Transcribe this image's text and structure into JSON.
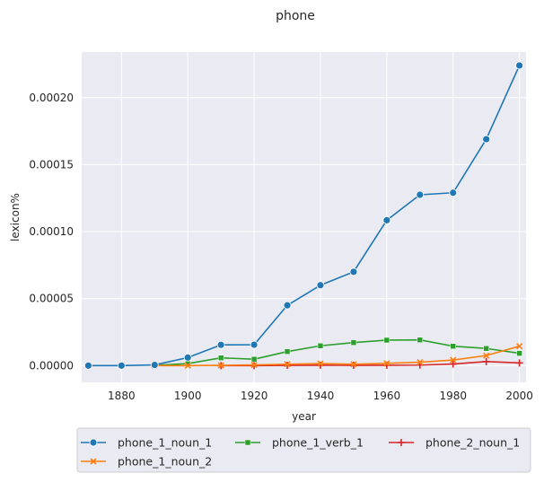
{
  "chart_data": {
    "type": "line",
    "title": "phone",
    "xlabel": "year",
    "ylabel": "lexicon%",
    "xlim": [
      1868,
      2002
    ],
    "ylim": [
      -1.25e-05,
      0.000234
    ],
    "x_ticks": [
      1880,
      1900,
      1920,
      1940,
      1960,
      1980,
      2000
    ],
    "y_ticks": [
      0.0,
      5e-05,
      0.0001,
      0.00015,
      0.0002
    ],
    "y_tick_labels": [
      "0.00000",
      "0.00005",
      "0.00010",
      "0.00015",
      "0.00020"
    ],
    "grid": true,
    "legend_position": "bottom-outside",
    "series": [
      {
        "name": "phone_1_noun_1",
        "color": "#1f77b4",
        "marker": "circle",
        "x": [
          1870,
          1880,
          1890,
          1900,
          1910,
          1920,
          1930,
          1940,
          1950,
          1960,
          1970,
          1980,
          1990,
          2000
        ],
        "y": [
          0.0,
          0.0,
          5e-07,
          6e-06,
          1.55e-05,
          1.56e-05,
          4.5e-05,
          6e-05,
          7e-05,
          0.0001085,
          0.0001275,
          0.000129,
          0.000169,
          0.000224
        ]
      },
      {
        "name": "phone_1_noun_2",
        "color": "#ff7f0e",
        "marker": "x",
        "x": [
          1890,
          1900,
          1910,
          1920,
          1930,
          1940,
          1950,
          1960,
          1970,
          1980,
          1990,
          2000
        ],
        "y": [
          0.0,
          0.0,
          2e-07,
          5e-07,
          1e-06,
          1.5e-06,
          1e-06,
          1.7e-06,
          2.5e-06,
          4.2e-06,
          7.5e-06,
          1.45e-05
        ]
      },
      {
        "name": "phone_1_verb_1",
        "color": "#2ca02c",
        "marker": "square",
        "x": [
          1890,
          1900,
          1910,
          1920,
          1930,
          1940,
          1950,
          1960,
          1970,
          1980,
          1990,
          2000
        ],
        "y": [
          2e-07,
          1.5e-06,
          5.8e-06,
          4.8e-06,
          1.05e-05,
          1.48e-05,
          1.72e-05,
          1.9e-05,
          1.92e-05,
          1.45e-05,
          1.28e-05,
          9.2e-06
        ]
      },
      {
        "name": "phone_2_noun_1",
        "color": "#d62728",
        "marker": "plus",
        "x": [
          1910,
          1920,
          1930,
          1940,
          1950,
          1960,
          1970,
          1980,
          1990,
          2000
        ],
        "y": [
          0.0,
          0.0,
          2e-07,
          3e-07,
          2e-07,
          3e-07,
          4e-07,
          1.2e-06,
          3e-06,
          2e-06
        ]
      }
    ]
  }
}
